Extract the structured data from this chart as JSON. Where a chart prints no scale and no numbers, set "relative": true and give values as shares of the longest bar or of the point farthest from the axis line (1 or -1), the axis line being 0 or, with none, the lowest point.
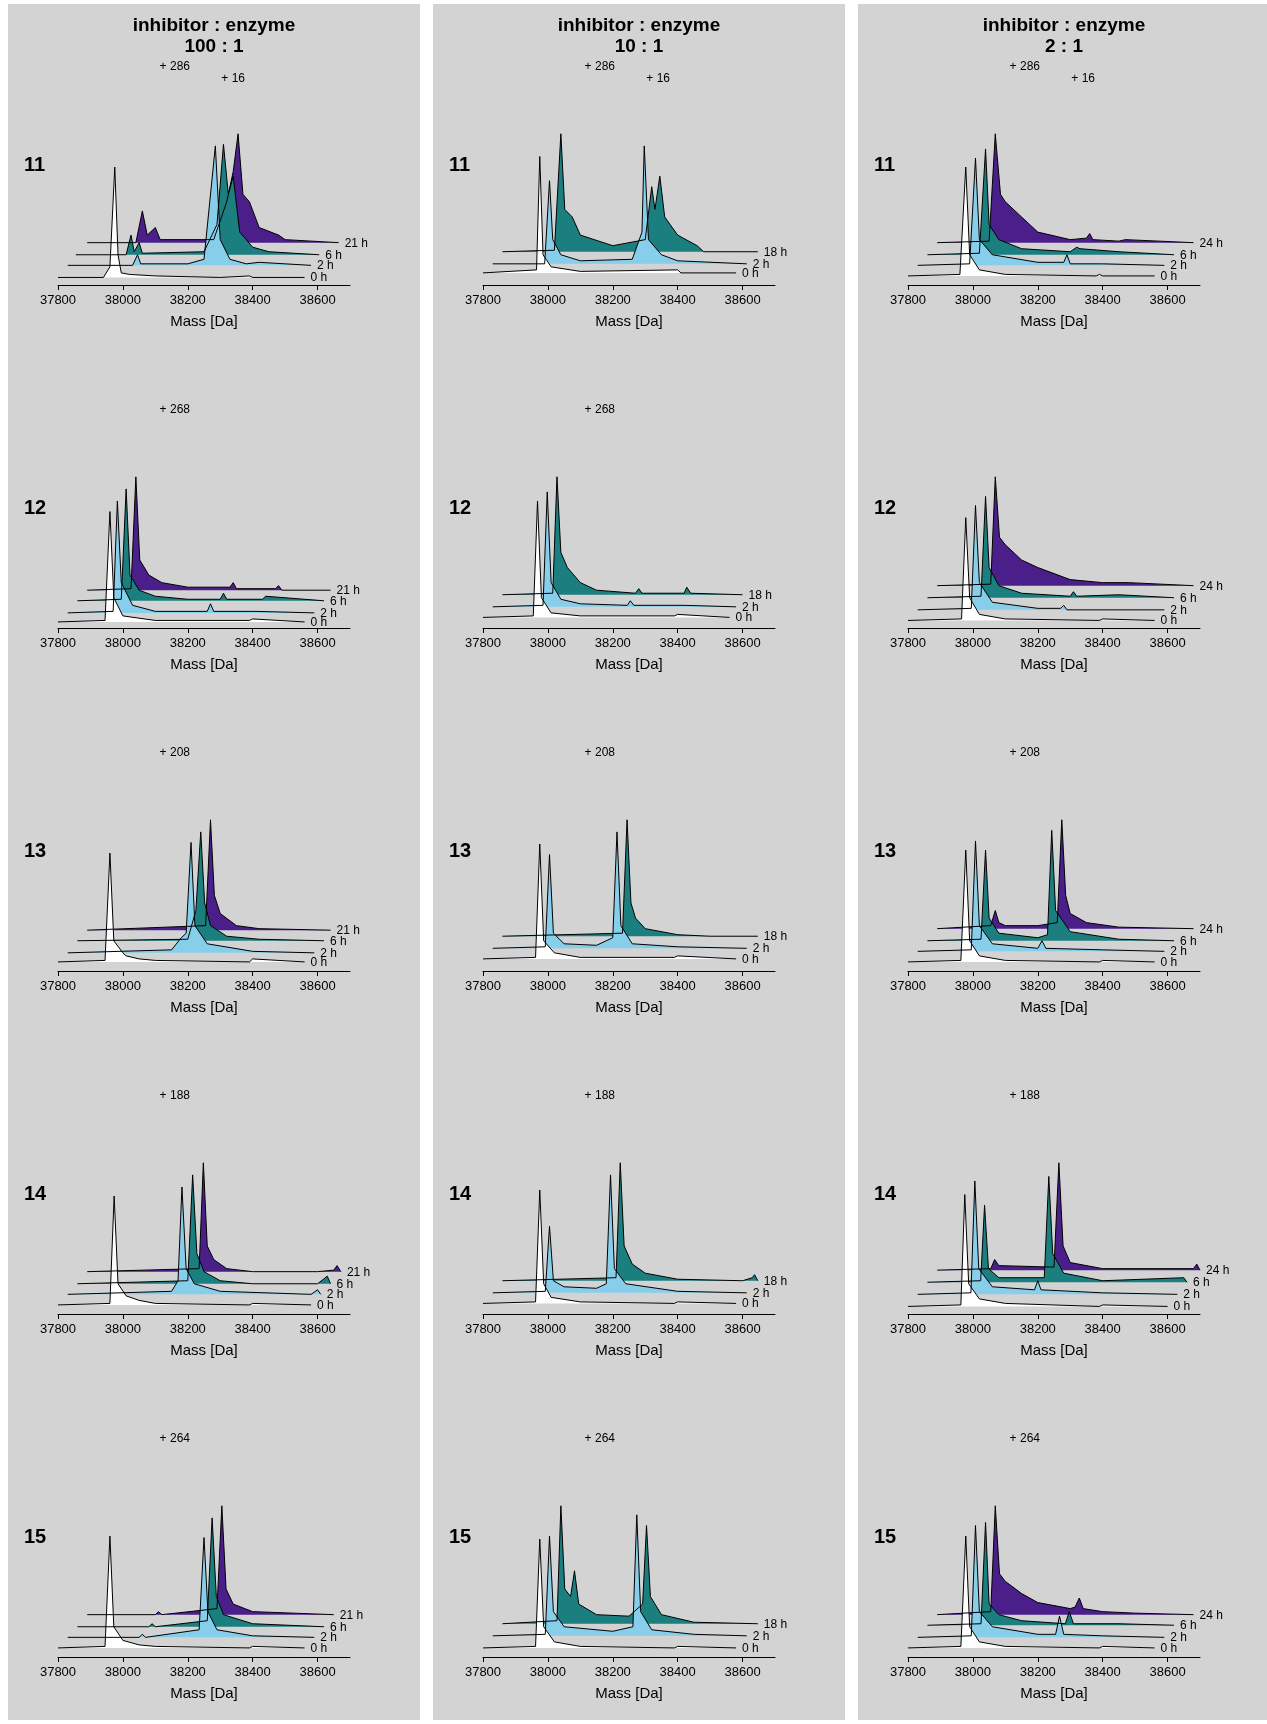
{
  "chart_data": [
    {
      "type": "area",
      "title": "inhibitor : enzyme",
      "subtitle": "100 : 1",
      "ylabel": "11",
      "xlabel": "Mass [Da]",
      "relative": true,
      "xlim": [
        37800,
        38700
      ],
      "xticks": [
        37800,
        38000,
        38200,
        38400,
        38600
      ],
      "annotations": [
        "+ 286",
        "+ 16"
      ],
      "series": [
        {
          "name": "21 h",
          "color": "#4b1f8a",
          "x": [
            37890,
            38040,
            38060,
            38075,
            38100,
            38115,
            38280,
            38320,
            38340,
            38355,
            38370,
            38390,
            38420,
            38480,
            38500,
            38665
          ],
          "values": [
            0.28,
            0.28,
            0.49,
            0.33,
            0.38,
            0.3,
            0.3,
            0.55,
            0.75,
            1.0,
            0.6,
            0.55,
            0.38,
            0.33,
            0.3,
            0.28
          ]
        },
        {
          "name": "6 h",
          "color": "#1b7f7f",
          "x": [
            37855,
            38010,
            38025,
            38035,
            38050,
            38060,
            38250,
            38290,
            38310,
            38325,
            38340,
            38360,
            38400,
            38450,
            38605
          ],
          "values": [
            0.2,
            0.2,
            0.33,
            0.22,
            0.28,
            0.21,
            0.22,
            0.4,
            0.93,
            0.6,
            0.72,
            0.35,
            0.25,
            0.22,
            0.2
          ]
        },
        {
          "name": "2 h",
          "color": "#87ceeb",
          "x": [
            37830,
            38030,
            38045,
            38055,
            38200,
            38250,
            38285,
            38300,
            38330,
            38380,
            38420,
            38580
          ],
          "values": [
            0.13,
            0.13,
            0.2,
            0.14,
            0.14,
            0.17,
            0.92,
            0.3,
            0.17,
            0.14,
            0.15,
            0.13
          ]
        },
        {
          "name": "0 h",
          "color": "#ffffff",
          "x": [
            37800,
            37940,
            37960,
            37975,
            37985,
            37995,
            38020,
            38100,
            38300,
            38390,
            38400,
            38560
          ],
          "values": [
            0.05,
            0.05,
            0.12,
            0.78,
            0.2,
            0.08,
            0.07,
            0.06,
            0.05,
            0.06,
            0.05,
            0.05
          ]
        }
      ]
    },
    {
      "type": "area",
      "title": "inhibitor : enzyme",
      "subtitle": "10 : 1",
      "ylabel": "11",
      "xlabel": "Mass [Da]",
      "relative": true,
      "xlim": [
        37800,
        38700
      ],
      "xticks": [
        37800,
        38000,
        38200,
        38400,
        38600
      ],
      "annotations": [
        "+ 286",
        "+ 16"
      ],
      "series": [
        {
          "name": "18 h",
          "color": "#1b7f7f",
          "x": [
            37860,
            38020,
            38040,
            38052,
            38075,
            38100,
            38200,
            38300,
            38320,
            38330,
            38345,
            38360,
            38400,
            38460,
            38480,
            38647
          ],
          "values": [
            0.22,
            0.23,
            1.0,
            0.5,
            0.45,
            0.33,
            0.26,
            0.3,
            0.65,
            0.5,
            0.72,
            0.45,
            0.33,
            0.26,
            0.22,
            0.22
          ]
        },
        {
          "name": "2 h",
          "color": "#87ceeb",
          "x": [
            37830,
            37990,
            38005,
            38015,
            38040,
            38100,
            38260,
            38290,
            38297,
            38310,
            38350,
            38400,
            38613
          ],
          "values": [
            0.14,
            0.14,
            0.69,
            0.3,
            0.2,
            0.16,
            0.17,
            0.35,
            0.92,
            0.3,
            0.2,
            0.16,
            0.14
          ]
        },
        {
          "name": "0 h",
          "color": "#ffffff",
          "x": [
            37800,
            37965,
            37975,
            37985,
            38010,
            38100,
            38400,
            38410,
            38580
          ],
          "values": [
            0.08,
            0.1,
            0.85,
            0.2,
            0.12,
            0.09,
            0.1,
            0.08,
            0.08
          ]
        }
      ]
    },
    {
      "type": "area",
      "title": "inhibitor : enzyme",
      "subtitle": "2 : 1",
      "ylabel": "11",
      "xlabel": "Mass [Da]",
      "relative": true,
      "xlim": [
        37800,
        38700
      ],
      "xticks": [
        37800,
        38000,
        38200,
        38400,
        38600
      ],
      "annotations": [
        "+ 286",
        "+ 16"
      ],
      "series": [
        {
          "name": "24 h",
          "color": "#4b1f8a",
          "x": [
            37890,
            38050,
            38069,
            38085,
            38100,
            38150,
            38200,
            38300,
            38350,
            38360,
            38370,
            38450,
            38470,
            38680
          ],
          "values": [
            0.28,
            0.29,
            1.0,
            0.6,
            0.55,
            0.45,
            0.35,
            0.3,
            0.31,
            0.34,
            0.3,
            0.29,
            0.3,
            0.28
          ]
        },
        {
          "name": "6 h",
          "color": "#1b7f7f",
          "x": [
            37860,
            38020,
            38039,
            38050,
            38080,
            38150,
            38300,
            38320,
            38330,
            38450,
            38620
          ],
          "values": [
            0.2,
            0.21,
            0.9,
            0.4,
            0.3,
            0.24,
            0.22,
            0.25,
            0.24,
            0.22,
            0.2
          ]
        },
        {
          "name": "2 h",
          "color": "#87ceeb",
          "x": [
            37830,
            37990,
            38008,
            38020,
            38060,
            38200,
            38280,
            38290,
            38300,
            38400,
            38590
          ],
          "values": [
            0.13,
            0.14,
            0.84,
            0.3,
            0.2,
            0.15,
            0.15,
            0.2,
            0.14,
            0.14,
            0.13
          ]
        },
        {
          "name": "0 h",
          "color": "#ffffff",
          "x": [
            37800,
            37960,
            37978,
            37990,
            38020,
            38100,
            38380,
            38390,
            38400,
            38560
          ],
          "values": [
            0.06,
            0.07,
            0.78,
            0.2,
            0.1,
            0.07,
            0.06,
            0.07,
            0.06,
            0.06
          ]
        }
      ]
    },
    {
      "type": "area",
      "ylabel": "12",
      "xlabel": "Mass [Da]",
      "relative": true,
      "xlim": [
        37800,
        38700
      ],
      "xticks": [
        37800,
        38000,
        38200,
        38400,
        38600
      ],
      "annotations": [
        "+ 268"
      ],
      "series": [
        {
          "name": "21 h",
          "color": "#4b1f8a",
          "x": [
            37890,
            38025,
            38040,
            38052,
            38080,
            38120,
            38200,
            38330,
            38340,
            38350,
            38470,
            38480,
            38490,
            38640
          ],
          "values": [
            0.25,
            0.26,
            1.0,
            0.45,
            0.35,
            0.3,
            0.27,
            0.27,
            0.3,
            0.26,
            0.26,
            0.28,
            0.25,
            0.25
          ]
        },
        {
          "name": "6 h",
          "color": "#1b7f7f",
          "x": [
            37860,
            37995,
            38010,
            38022,
            38050,
            38100,
            38200,
            38300,
            38310,
            38320,
            38430,
            38440,
            38620
          ],
          "values": [
            0.18,
            0.19,
            0.92,
            0.35,
            0.25,
            0.21,
            0.19,
            0.19,
            0.23,
            0.19,
            0.19,
            0.21,
            0.18
          ]
        },
        {
          "name": "2 h",
          "color": "#87ceeb",
          "x": [
            37830,
            37970,
            37983,
            37995,
            38030,
            38100,
            38260,
            38270,
            38280,
            38410,
            38590
          ],
          "values": [
            0.1,
            0.11,
            0.84,
            0.3,
            0.15,
            0.11,
            0.11,
            0.16,
            0.11,
            0.11,
            0.1
          ]
        },
        {
          "name": "0 h",
          "color": "#ffffff",
          "x": [
            37800,
            37945,
            37960,
            37972,
            38000,
            38100,
            38390,
            38400,
            38560
          ],
          "values": [
            0.04,
            0.05,
            0.77,
            0.2,
            0.08,
            0.05,
            0.05,
            0.06,
            0.04
          ]
        }
      ]
    },
    {
      "type": "area",
      "ylabel": "12",
      "xlabel": "Mass [Da]",
      "relative": true,
      "xlim": [
        37800,
        38700
      ],
      "xticks": [
        37800,
        38000,
        38200,
        38400,
        38600
      ],
      "annotations": [
        "+ 268"
      ],
      "series": [
        {
          "name": "18 h",
          "color": "#1b7f7f",
          "x": [
            37860,
            38015,
            38028,
            38040,
            38060,
            38100,
            38150,
            38270,
            38280,
            38290,
            38420,
            38428,
            38440,
            38600
          ],
          "values": [
            0.22,
            0.23,
            1.0,
            0.5,
            0.4,
            0.3,
            0.25,
            0.23,
            0.26,
            0.23,
            0.23,
            0.27,
            0.23,
            0.22
          ]
        },
        {
          "name": "2 h",
          "color": "#87ceeb",
          "x": [
            37830,
            37985,
            37998,
            38010,
            38040,
            38100,
            38245,
            38254,
            38265,
            38420,
            38580
          ],
          "values": [
            0.14,
            0.15,
            0.9,
            0.3,
            0.19,
            0.16,
            0.15,
            0.18,
            0.15,
            0.15,
            0.14
          ]
        },
        {
          "name": "0 h",
          "color": "#ffffff",
          "x": [
            37800,
            37955,
            37968,
            37980,
            38010,
            38100,
            38390,
            38400,
            38560
          ],
          "values": [
            0.07,
            0.08,
            0.84,
            0.2,
            0.1,
            0.08,
            0.08,
            0.09,
            0.07
          ]
        }
      ]
    },
    {
      "type": "area",
      "ylabel": "12",
      "xlabel": "Mass [Da]",
      "relative": true,
      "xlim": [
        37800,
        38700
      ],
      "xticks": [
        37800,
        38000,
        38200,
        38400,
        38600
      ],
      "series": [
        {
          "name": "24 h",
          "color": "#4b1f8a",
          "x": [
            37890,
            38055,
            38069,
            38082,
            38100,
            38150,
            38200,
            38300,
            38400,
            38480,
            38680
          ],
          "values": [
            0.28,
            0.29,
            1.0,
            0.6,
            0.55,
            0.45,
            0.4,
            0.32,
            0.3,
            0.3,
            0.28
          ]
        },
        {
          "name": "6 h",
          "color": "#1b7f7f",
          "x": [
            37860,
            38025,
            38039,
            38050,
            38080,
            38150,
            38300,
            38310,
            38320,
            38450,
            38620
          ],
          "values": [
            0.2,
            0.21,
            0.87,
            0.4,
            0.28,
            0.23,
            0.21,
            0.24,
            0.21,
            0.22,
            0.2
          ]
        },
        {
          "name": "2 h",
          "color": "#87ceeb",
          "x": [
            37830,
            37995,
            38008,
            38020,
            38060,
            38200,
            38270,
            38280,
            38290,
            38590
          ],
          "values": [
            0.12,
            0.13,
            0.81,
            0.3,
            0.17,
            0.13,
            0.13,
            0.15,
            0.12,
            0.12
          ]
        },
        {
          "name": "0 h",
          "color": "#ffffff",
          "x": [
            37800,
            37965,
            37978,
            37990,
            38020,
            38100,
            38390,
            38400,
            38560
          ],
          "values": [
            0.05,
            0.06,
            0.73,
            0.2,
            0.09,
            0.06,
            0.05,
            0.06,
            0.05
          ]
        }
      ]
    },
    {
      "type": "area",
      "ylabel": "13",
      "xlabel": "Mass [Da]",
      "relative": true,
      "xlim": [
        37800,
        38700
      ],
      "xticks": [
        37800,
        38000,
        38200,
        38400,
        38600
      ],
      "annotations": [
        "+ 208"
      ],
      "series": [
        {
          "name": "21 h",
          "color": "#4b1f8a",
          "x": [
            37890,
            38255,
            38270,
            38282,
            38300,
            38350,
            38420,
            38640
          ],
          "values": [
            0.27,
            0.3,
            1.0,
            0.5,
            0.38,
            0.3,
            0.28,
            0.27
          ]
        },
        {
          "name": "6 h",
          "color": "#1b7f7f",
          "x": [
            37860,
            38200,
            38225,
            38240,
            38252,
            38270,
            38320,
            38420,
            38620
          ],
          "values": [
            0.2,
            0.21,
            0.4,
            0.92,
            0.45,
            0.3,
            0.23,
            0.21,
            0.2
          ]
        },
        {
          "name": "2 h",
          "color": "#87ceeb",
          "x": [
            37830,
            38150,
            38180,
            38195,
            38210,
            38222,
            38260,
            38400,
            38590
          ],
          "values": [
            0.12,
            0.14,
            0.22,
            0.25,
            0.85,
            0.3,
            0.18,
            0.13,
            0.12
          ]
        },
        {
          "name": "0 h",
          "color": "#ffffff",
          "x": [
            37800,
            37945,
            37960,
            37972,
            38000,
            38010,
            38050,
            38100,
            38390,
            38400,
            38560
          ],
          "values": [
            0.06,
            0.07,
            0.78,
            0.2,
            0.12,
            0.1,
            0.08,
            0.07,
            0.06,
            0.08,
            0.06
          ]
        }
      ]
    },
    {
      "type": "area",
      "ylabel": "13",
      "xlabel": "Mass [Da]",
      "relative": true,
      "xlim": [
        37800,
        38700
      ],
      "xticks": [
        37800,
        38000,
        38200,
        38400,
        38600
      ],
      "annotations": [
        "+ 208"
      ],
      "series": [
        {
          "name": "18 h",
          "color": "#1b7f7f",
          "x": [
            37860,
            38230,
            38244,
            38256,
            38270,
            38300,
            38400,
            38500,
            38647
          ],
          "values": [
            0.23,
            0.25,
            1.0,
            0.45,
            0.35,
            0.28,
            0.24,
            0.23,
            0.23
          ]
        },
        {
          "name": "2 h",
          "color": "#87ceeb",
          "x": [
            37830,
            37992,
            38005,
            38017,
            38050,
            38150,
            38180,
            38200,
            38213,
            38225,
            38260,
            38400,
            38613
          ],
          "values": [
            0.15,
            0.16,
            0.77,
            0.25,
            0.18,
            0.17,
            0.2,
            0.22,
            0.92,
            0.3,
            0.18,
            0.16,
            0.15
          ]
        },
        {
          "name": "0 h",
          "color": "#ffffff",
          "x": [
            37800,
            37962,
            37975,
            37987,
            38020,
            38100,
            38390,
            38400,
            38580
          ],
          "values": [
            0.08,
            0.09,
            0.84,
            0.2,
            0.12,
            0.09,
            0.09,
            0.1,
            0.08
          ]
        }
      ]
    },
    {
      "type": "area",
      "ylabel": "13",
      "xlabel": "Mass [Da]",
      "relative": true,
      "xlim": [
        37800,
        38700
      ],
      "xticks": [
        37800,
        38000,
        38200,
        38400,
        38600
      ],
      "annotations": [
        "+ 208"
      ],
      "series": [
        {
          "name": "24 h",
          "color": "#4b1f8a",
          "x": [
            37890,
            38055,
            38069,
            38080,
            38100,
            38200,
            38260,
            38274,
            38286,
            38300,
            38350,
            38450,
            38680
          ],
          "values": [
            0.28,
            0.3,
            0.4,
            0.32,
            0.3,
            0.3,
            0.32,
            1.0,
            0.5,
            0.38,
            0.32,
            0.29,
            0.28
          ]
        },
        {
          "name": "6 h",
          "color": "#1b7f7f",
          "x": [
            37860,
            38025,
            38039,
            38050,
            38080,
            38200,
            38230,
            38243,
            38255,
            38300,
            38450,
            38620
          ],
          "values": [
            0.2,
            0.21,
            0.8,
            0.35,
            0.25,
            0.22,
            0.24,
            0.93,
            0.4,
            0.26,
            0.21,
            0.2
          ]
        },
        {
          "name": "2 h",
          "color": "#87ceeb",
          "x": [
            37830,
            37995,
            38008,
            38020,
            38060,
            38200,
            38213,
            38225,
            38400,
            38590
          ],
          "values": [
            0.13,
            0.14,
            0.86,
            0.3,
            0.18,
            0.15,
            0.2,
            0.15,
            0.14,
            0.13
          ]
        },
        {
          "name": "0 h",
          "color": "#ffffff",
          "x": [
            37800,
            37963,
            37978,
            37990,
            38020,
            38100,
            38390,
            38400,
            38560
          ],
          "values": [
            0.06,
            0.07,
            0.8,
            0.2,
            0.1,
            0.07,
            0.06,
            0.07,
            0.06
          ]
        }
      ]
    },
    {
      "type": "area",
      "ylabel": "14",
      "xlabel": "Mass [Da]",
      "relative": true,
      "xlim": [
        37800,
        38700
      ],
      "xticks": [
        37800,
        38000,
        38200,
        38400,
        38600
      ],
      "annotations": [
        "+ 188"
      ],
      "series": [
        {
          "name": "21 h",
          "color": "#4b1f8a",
          "x": [
            37890,
            38235,
            38248,
            38260,
            38280,
            38320,
            38400,
            38600,
            38650,
            38660,
            38672
          ],
          "values": [
            0.28,
            0.3,
            1.0,
            0.45,
            0.36,
            0.3,
            0.28,
            0.28,
            0.29,
            0.32,
            0.28
          ]
        },
        {
          "name": "6 h",
          "color": "#1b7f7f",
          "x": [
            37860,
            38200,
            38215,
            38228,
            38250,
            38300,
            38400,
            38600,
            38630,
            38640
          ],
          "values": [
            0.2,
            0.22,
            0.92,
            0.4,
            0.28,
            0.22,
            0.2,
            0.2,
            0.25,
            0.2
          ]
        },
        {
          "name": "2 h",
          "color": "#87ceeb",
          "x": [
            37830,
            38150,
            38170,
            38182,
            38195,
            38220,
            38300,
            38580,
            38600,
            38610
          ],
          "values": [
            0.13,
            0.15,
            0.22,
            0.84,
            0.3,
            0.2,
            0.15,
            0.13,
            0.16,
            0.13
          ]
        },
        {
          "name": "0 h",
          "color": "#ffffff",
          "x": [
            37800,
            37960,
            37973,
            37985,
            38010,
            38050,
            38100,
            38390,
            38400,
            38580
          ],
          "values": [
            0.06,
            0.07,
            0.78,
            0.2,
            0.12,
            0.09,
            0.07,
            0.06,
            0.07,
            0.06
          ]
        }
      ]
    },
    {
      "type": "area",
      "ylabel": "14",
      "xlabel": "Mass [Da]",
      "relative": true,
      "xlim": [
        37800,
        38700
      ],
      "xticks": [
        37800,
        38000,
        38200,
        38400,
        38600
      ],
      "annotations": [
        "+ 188"
      ],
      "series": [
        {
          "name": "18 h",
          "color": "#1b7f7f",
          "x": [
            37860,
            38210,
            38223,
            38235,
            38260,
            38300,
            38400,
            38600,
            38630,
            38637,
            38647
          ],
          "values": [
            0.22,
            0.24,
            1.0,
            0.45,
            0.33,
            0.27,
            0.23,
            0.22,
            0.24,
            0.26,
            0.22
          ]
        },
        {
          "name": "2 h",
          "color": "#87ceeb",
          "x": [
            37830,
            37992,
            38005,
            38017,
            38050,
            38150,
            38180,
            38193,
            38205,
            38240,
            38400,
            38613
          ],
          "values": [
            0.14,
            0.15,
            0.58,
            0.22,
            0.18,
            0.17,
            0.2,
            0.92,
            0.3,
            0.2,
            0.15,
            0.14
          ]
        },
        {
          "name": "0 h",
          "color": "#ffffff",
          "x": [
            37800,
            37962,
            37975,
            37987,
            38010,
            38100,
            38390,
            38400,
            38580
          ],
          "values": [
            0.07,
            0.08,
            0.82,
            0.2,
            0.11,
            0.08,
            0.07,
            0.08,
            0.07
          ]
        }
      ]
    },
    {
      "type": "area",
      "ylabel": "14",
      "xlabel": "Mass [Da]",
      "relative": true,
      "xlim": [
        37800,
        38700
      ],
      "xticks": [
        37800,
        38000,
        38200,
        38400,
        38600
      ],
      "annotations": [
        "+ 188"
      ],
      "series": [
        {
          "name": "24 h",
          "color": "#4b1f8a",
          "x": [
            37890,
            38055,
            38067,
            38080,
            38250,
            38265,
            38278,
            38300,
            38400,
            38680,
            38690,
            38700
          ],
          "values": [
            0.29,
            0.3,
            0.36,
            0.32,
            0.31,
            1.0,
            0.45,
            0.34,
            0.3,
            0.3,
            0.33,
            0.29
          ]
        },
        {
          "name": "6 h",
          "color": "#1b7f7f",
          "x": [
            37860,
            38024,
            38036,
            38048,
            38080,
            38220,
            38234,
            38246,
            38280,
            38400,
            38650,
            38660
          ],
          "values": [
            0.21,
            0.22,
            0.72,
            0.3,
            0.24,
            0.24,
            0.91,
            0.4,
            0.27,
            0.22,
            0.24,
            0.21
          ]
        },
        {
          "name": "2 h",
          "color": "#87ceeb",
          "x": [
            37830,
            37994,
            38006,
            38018,
            38060,
            38190,
            38200,
            38210,
            38400,
            38630
          ],
          "values": [
            0.13,
            0.14,
            0.88,
            0.3,
            0.18,
            0.16,
            0.22,
            0.16,
            0.14,
            0.13
          ]
        },
        {
          "name": "0 h",
          "color": "#ffffff",
          "x": [
            37800,
            37963,
            37975,
            37987,
            38020,
            38100,
            38390,
            38400,
            38600
          ],
          "values": [
            0.05,
            0.06,
            0.79,
            0.2,
            0.1,
            0.07,
            0.05,
            0.06,
            0.05
          ]
        }
      ]
    },
    {
      "type": "area",
      "ylabel": "15",
      "xlabel": "Mass [Da]",
      "relative": true,
      "xlim": [
        37800,
        38700
      ],
      "xticks": [
        37800,
        38000,
        38200,
        38400,
        38600
      ],
      "annotations": [
        "+ 264"
      ],
      "series": [
        {
          "name": "21 h",
          "color": "#4b1f8a",
          "x": [
            37890,
            38100,
            38110,
            38120,
            38290,
            38305,
            38318,
            38340,
            38400,
            38650
          ],
          "values": [
            0.28,
            0.28,
            0.3,
            0.28,
            0.32,
            1.0,
            0.45,
            0.35,
            0.3,
            0.28
          ]
        },
        {
          "name": "6 h",
          "color": "#1b7f7f",
          "x": [
            37860,
            38080,
            38090,
            38100,
            38260,
            38275,
            38288,
            38310,
            38400,
            38620
          ],
          "values": [
            0.2,
            0.2,
            0.22,
            0.2,
            0.24,
            0.92,
            0.4,
            0.28,
            0.22,
            0.2
          ]
        },
        {
          "name": "2 h",
          "color": "#87ceeb",
          "x": [
            37830,
            38050,
            38060,
            38070,
            38235,
            38250,
            38262,
            38290,
            38400,
            38590
          ],
          "values": [
            0.13,
            0.13,
            0.15,
            0.13,
            0.18,
            0.79,
            0.3,
            0.18,
            0.14,
            0.13
          ]
        },
        {
          "name": "0 h",
          "color": "#ffffff",
          "x": [
            37800,
            37945,
            37960,
            37972,
            38000,
            38050,
            38100,
            38390,
            38400,
            38560
          ],
          "values": [
            0.06,
            0.07,
            0.8,
            0.2,
            0.11,
            0.08,
            0.07,
            0.06,
            0.07,
            0.06
          ]
        }
      ]
    },
    {
      "type": "area",
      "ylabel": "15",
      "xlabel": "Mass [Da]",
      "relative": true,
      "xlim": [
        37800,
        38700
      ],
      "xticks": [
        37800,
        38000,
        38200,
        38400,
        38600
      ],
      "annotations": [
        "+ 264"
      ],
      "series": [
        {
          "name": "18 h",
          "color": "#1b7f7f",
          "x": [
            37860,
            38028,
            38040,
            38052,
            38070,
            38082,
            38095,
            38150,
            38250,
            38292,
            38304,
            38316,
            38350,
            38450,
            38647
          ],
          "values": [
            0.22,
            0.24,
            1.0,
            0.45,
            0.4,
            0.57,
            0.35,
            0.28,
            0.27,
            0.35,
            0.87,
            0.4,
            0.28,
            0.23,
            0.22
          ]
        },
        {
          "name": "2 h",
          "color": "#87ceeb",
          "x": [
            37830,
            37992,
            38005,
            38017,
            38050,
            38200,
            38262,
            38274,
            38286,
            38320,
            38450,
            38613
          ],
          "values": [
            0.14,
            0.15,
            0.8,
            0.3,
            0.2,
            0.17,
            0.2,
            0.94,
            0.3,
            0.18,
            0.15,
            0.14
          ]
        },
        {
          "name": "0 h",
          "color": "#ffffff",
          "x": [
            37800,
            37962,
            37975,
            37987,
            38020,
            38100,
            38390,
            38400,
            38580
          ],
          "values": [
            0.06,
            0.07,
            0.78,
            0.2,
            0.1,
            0.07,
            0.06,
            0.07,
            0.06
          ]
        }
      ]
    },
    {
      "type": "area",
      "ylabel": "15",
      "xlabel": "Mass [Da]",
      "relative": true,
      "xlim": [
        37800,
        38700
      ],
      "xticks": [
        37800,
        38000,
        38200,
        38400,
        38600
      ],
      "annotations": [
        "+ 264"
      ],
      "series": [
        {
          "name": "24 h",
          "color": "#4b1f8a",
          "x": [
            37890,
            38055,
            38069,
            38082,
            38100,
            38150,
            38200,
            38300,
            38315,
            38328,
            38340,
            38400,
            38500,
            38680
          ],
          "values": [
            0.28,
            0.3,
            1.0,
            0.55,
            0.5,
            0.42,
            0.36,
            0.32,
            0.33,
            0.39,
            0.32,
            0.3,
            0.29,
            0.28
          ]
        },
        {
          "name": "6 h",
          "color": "#1b7f7f",
          "x": [
            37860,
            38025,
            38039,
            38050,
            38080,
            38150,
            38285,
            38297,
            38310,
            38450,
            38620
          ],
          "values": [
            0.21,
            0.22,
            0.89,
            0.35,
            0.28,
            0.24,
            0.22,
            0.3,
            0.22,
            0.22,
            0.21
          ]
        },
        {
          "name": "2 h",
          "color": "#87ceeb",
          "x": [
            37830,
            37995,
            38008,
            38020,
            38060,
            38200,
            38255,
            38267,
            38280,
            38400,
            38590
          ],
          "values": [
            0.13,
            0.14,
            0.87,
            0.3,
            0.2,
            0.15,
            0.15,
            0.27,
            0.15,
            0.14,
            0.13
          ]
        },
        {
          "name": "0 h",
          "color": "#ffffff",
          "x": [
            37800,
            37963,
            37978,
            37990,
            38020,
            38100,
            38390,
            38400,
            38560
          ],
          "values": [
            0.06,
            0.07,
            0.8,
            0.2,
            0.1,
            0.07,
            0.06,
            0.07,
            0.06
          ]
        }
      ]
    }
  ]
}
